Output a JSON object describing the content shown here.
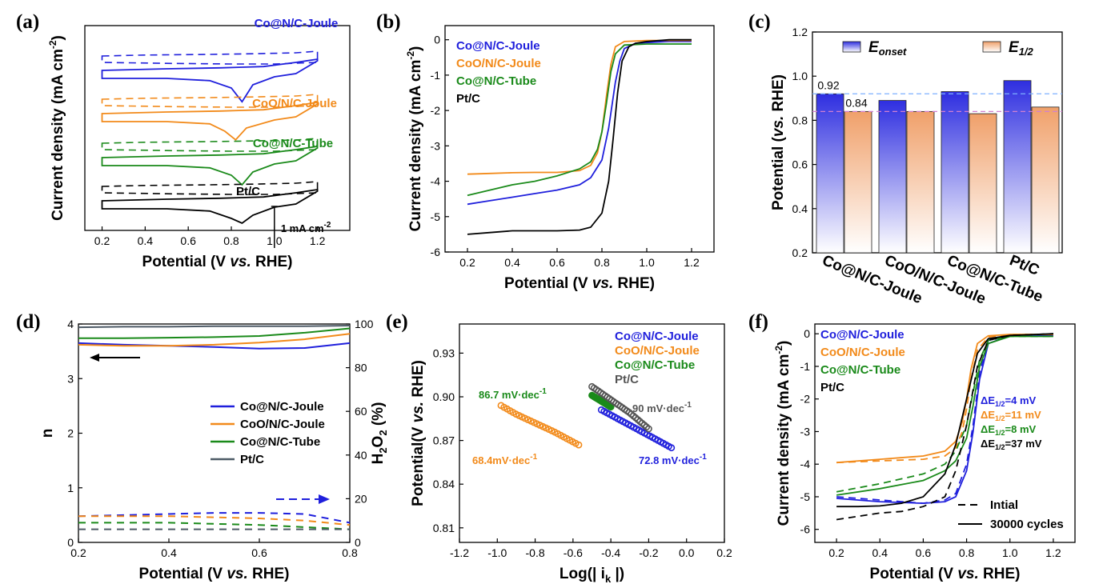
{
  "colors": {
    "blue": "#1f1fdc",
    "orange": "#f28a1a",
    "green": "#1a8a1a",
    "black": "#000000",
    "gray": "#4d5a66",
    "h2o2": "#1f4fa0"
  },
  "panels": [
    {
      "id": "a",
      "label": "(a)"
    },
    {
      "id": "b",
      "label": "(b)"
    },
    {
      "id": "c",
      "label": "(c)"
    },
    {
      "id": "d",
      "label": "(d)"
    },
    {
      "id": "e",
      "label": "(e)"
    },
    {
      "id": "f",
      "label": "(f)"
    }
  ],
  "chart_data": [
    {
      "panel": "a",
      "type": "line",
      "subtype": "cyclic-voltammetry-offset",
      "xlabel_pre": "Potential (V ",
      "xlabel_it": "vs.",
      "xlabel_post": " RHE)",
      "ylabel": "Current density (mA cm",
      "xlim": [
        0.12,
        1.35
      ],
      "xticks": [
        "0.2",
        "0.4",
        "0.6",
        "0.8",
        "1.0",
        "1.2"
      ],
      "scale_bar": "1 mA cm",
      "series": [
        {
          "name": "Co@N/C-Joule",
          "color": "blue",
          "offset": 3.6,
          "peak_potential": 0.85,
          "peak_depth": 0.78
        },
        {
          "name": "CoO/N/C-Joule",
          "color": "orange",
          "offset": 2.4,
          "peak_potential": 0.82,
          "peak_depth": 0.62
        },
        {
          "name": "Co@N/C-Tube",
          "color": "green",
          "offset": 1.25,
          "peak_potential": 0.85,
          "peak_depth": 0.65
        },
        {
          "name": "Pt/C",
          "color": "black",
          "offset": 0.15,
          "peak_potential": 0.85,
          "peak_depth": 0.5
        }
      ]
    },
    {
      "panel": "b",
      "type": "line",
      "xlabel_pre": "Potential (V ",
      "xlabel_it": "vs.",
      "xlabel_post": " RHE)",
      "ylabel": "Current density (mA cm",
      "xlim": [
        0.1,
        1.3
      ],
      "ylim": [
        -6,
        0.4
      ],
      "xticks": [
        "0.2",
        "0.4",
        "0.6",
        "0.8",
        "1.0",
        "1.2"
      ],
      "yticks": [
        "0",
        "-1",
        "-2",
        "-3",
        "-4",
        "-5",
        "-6"
      ],
      "legend": [
        "Co@N/C-Joule",
        "CoO/N/C-Joule",
        "Co@N/C-Tube",
        "Pt/C"
      ],
      "series": [
        {
          "name": "Co@N/C-Joule",
          "color": "blue",
          "x": [
            0.2,
            0.3,
            0.4,
            0.5,
            0.6,
            0.7,
            0.75,
            0.8,
            0.83,
            0.86,
            0.88,
            0.9,
            0.95,
            1.0,
            1.1,
            1.2
          ],
          "y": [
            -4.65,
            -4.55,
            -4.45,
            -4.35,
            -4.25,
            -4.1,
            -3.9,
            -3.4,
            -2.5,
            -1.2,
            -0.6,
            -0.25,
            -0.1,
            -0.08,
            -0.05,
            -0.05
          ]
        },
        {
          "name": "CoO/N/C-Joule",
          "color": "orange",
          "x": [
            0.2,
            0.3,
            0.4,
            0.5,
            0.6,
            0.7,
            0.75,
            0.78,
            0.8,
            0.82,
            0.84,
            0.86,
            0.9,
            1.0,
            1.1,
            1.2
          ],
          "y": [
            -3.8,
            -3.78,
            -3.76,
            -3.75,
            -3.75,
            -3.7,
            -3.55,
            -3.2,
            -2.6,
            -1.6,
            -0.7,
            -0.2,
            -0.05,
            -0.02,
            -0.02,
            -0.02
          ]
        },
        {
          "name": "Co@N/C-Tube",
          "color": "green",
          "x": [
            0.2,
            0.3,
            0.4,
            0.5,
            0.6,
            0.7,
            0.75,
            0.78,
            0.8,
            0.82,
            0.84,
            0.86,
            0.9,
            1.0,
            1.1,
            1.2
          ],
          "y": [
            -4.4,
            -4.25,
            -4.1,
            -4.0,
            -3.85,
            -3.65,
            -3.45,
            -3.1,
            -2.6,
            -1.8,
            -0.9,
            -0.4,
            -0.15,
            -0.12,
            -0.12,
            -0.12
          ]
        },
        {
          "name": "Pt/C",
          "color": "black",
          "x": [
            0.2,
            0.3,
            0.4,
            0.5,
            0.6,
            0.7,
            0.75,
            0.8,
            0.83,
            0.85,
            0.87,
            0.89,
            0.92,
            0.95,
            1.0,
            1.1,
            1.2
          ],
          "y": [
            -5.5,
            -5.45,
            -5.4,
            -5.4,
            -5.4,
            -5.38,
            -5.3,
            -4.9,
            -4.0,
            -2.8,
            -1.5,
            -0.6,
            -0.2,
            -0.1,
            -0.05,
            0.0,
            0.0
          ]
        }
      ]
    },
    {
      "panel": "c",
      "type": "bar",
      "ylabel_pre": "Potential (",
      "ylabel_it": "vs.",
      "ylabel_post": " RHE)",
      "ylim": [
        0.2,
        1.2
      ],
      "yticks": [
        "0.2",
        "0.4",
        "0.6",
        "0.8",
        "1.0",
        "1.2"
      ],
      "categories": [
        "Co@N/C-Joule",
        "CoO/N/C-Joule",
        "Co@N/C-Tube",
        "Pt/C"
      ],
      "legend": [
        {
          "main": "E",
          "sub": "onset"
        },
        {
          "main": "E",
          "sub": "1/2"
        }
      ],
      "series": [
        {
          "name": "E_onset",
          "color": "#2e2ee0",
          "values": [
            0.92,
            0.89,
            0.93,
            0.98
          ]
        },
        {
          "name": "E_1/2",
          "color": "#f0a06a",
          "values": [
            0.84,
            0.84,
            0.83,
            0.86
          ]
        }
      ],
      "reference_lines": [
        0.92,
        0.84
      ],
      "data_labels": [
        "0.92",
        "0.84"
      ]
    },
    {
      "panel": "d",
      "type": "line",
      "subtype": "dual-axis",
      "xlabel_pre": "Potential (V ",
      "xlabel_it": "vs.",
      "xlabel_post": " RHE)",
      "ylabel": "n",
      "ylabel_right_pre": "H",
      "ylabel_right_sub": "2",
      "ylabel_right_mid": "O",
      "ylabel_right_sub2": "2",
      "ylabel_right_post": " (%)",
      "xlim": [
        0.2,
        0.8
      ],
      "ylim": [
        0,
        4
      ],
      "ylim_right": [
        0,
        100
      ],
      "xticks": [
        "0.2",
        "0.4",
        "0.6",
        "0.8"
      ],
      "yticks": [
        "0",
        "1",
        "2",
        "3",
        "4"
      ],
      "yticks_right": [
        "0",
        "20",
        "40",
        "60",
        "80",
        "100"
      ],
      "legend": [
        "Co@N/C-Joule",
        "CoO/N/C-Joule",
        "Co@N/C-Tube",
        "Pt/C"
      ],
      "series": [
        {
          "name": "Co@N/C-Joule",
          "color": "blue",
          "x": [
            0.2,
            0.3,
            0.4,
            0.5,
            0.6,
            0.7,
            0.8
          ],
          "n": [
            3.65,
            3.62,
            3.6,
            3.58,
            3.55,
            3.56,
            3.65
          ],
          "h2o2": [
            12,
            12.5,
            13,
            13.5,
            13.5,
            13,
            9
          ]
        },
        {
          "name": "CoO/N/C-Joule",
          "color": "orange",
          "x": [
            0.2,
            0.3,
            0.4,
            0.5,
            0.6,
            0.7,
            0.8
          ],
          "n": [
            3.62,
            3.6,
            3.6,
            3.62,
            3.66,
            3.72,
            3.82
          ],
          "h2o2": [
            12,
            12,
            12,
            11.5,
            11,
            10,
            8
          ]
        },
        {
          "name": "Co@N/C-Tube",
          "color": "green",
          "x": [
            0.2,
            0.3,
            0.4,
            0.5,
            0.6,
            0.7,
            0.8
          ],
          "n": [
            3.74,
            3.74,
            3.75,
            3.76,
            3.78,
            3.84,
            3.92
          ],
          "h2o2": [
            9,
            9,
            9,
            8.5,
            8,
            7,
            6
          ]
        },
        {
          "name": "Pt/C",
          "color": "gray",
          "x": [
            0.2,
            0.3,
            0.4,
            0.5,
            0.6,
            0.7,
            0.8
          ],
          "n": [
            3.94,
            3.95,
            3.95,
            3.96,
            3.96,
            3.96,
            3.97
          ],
          "h2o2": [
            6,
            6,
            6,
            6,
            6,
            6,
            6
          ]
        }
      ]
    },
    {
      "panel": "e",
      "type": "scatter",
      "subtype": "tafel",
      "xlabel": "Log(| i",
      "xlabel_sub": "k",
      "xlabel_end": " |)",
      "ylabel_pre": "Potential(V ",
      "ylabel_it": "vs.",
      "ylabel_post": " RHE)",
      "xlim": [
        -1.2,
        0.2
      ],
      "ylim": [
        0.8,
        0.95
      ],
      "xticks": [
        "-1.2",
        "-1.0",
        "-0.8",
        "-0.6",
        "-0.4",
        "-0.2",
        "0.0",
        "0.2"
      ],
      "yticks": [
        "0.81",
        "0.84",
        "0.87",
        "0.90",
        "0.93"
      ],
      "legend": [
        "Co@N/C-Joule",
        "CoO/N/C-Joule",
        "Co@N/C-Tube",
        "Pt/C"
      ],
      "series": [
        {
          "name": "Co@N/C-Joule",
          "color": "blue",
          "x": [
            -0.45,
            -0.35,
            -0.25,
            -0.15,
            -0.08
          ],
          "y": [
            0.891,
            0.884,
            0.877,
            0.87,
            0.865
          ],
          "slope_label": "72.8 mV·dec"
        },
        {
          "name": "CoO/N/C-Joule",
          "color": "orange",
          "x": [
            -0.98,
            -0.9,
            -0.8,
            -0.7,
            -0.6,
            -0.57
          ],
          "y": [
            0.894,
            0.888,
            0.882,
            0.876,
            0.869,
            0.867
          ],
          "slope_label": "68.4mV·dec"
        },
        {
          "name": "Co@N/C-Tube",
          "color": "green",
          "x": [
            -0.5,
            -0.45,
            -0.4
          ],
          "y": [
            0.901,
            0.897,
            0.893
          ],
          "slope_label": "86.7 mV·dec"
        },
        {
          "name": "Pt/C",
          "color": "#555555",
          "x": [
            -0.5,
            -0.4,
            -0.3,
            -0.2
          ],
          "y": [
            0.907,
            0.898,
            0.889,
            0.878
          ],
          "slope_label": "90 mV·dec"
        }
      ],
      "superscript": "-1"
    },
    {
      "panel": "f",
      "type": "line",
      "subtype": "stability",
      "xlabel_pre": "Potential (V ",
      "xlabel_it": "vs.",
      "xlabel_post": " RHE)",
      "ylabel": "Current density (mA cm",
      "xlim": [
        0.1,
        1.3
      ],
      "ylim": [
        -6.4,
        0.3
      ],
      "xticks": [
        "0.2",
        "0.4",
        "0.6",
        "0.8",
        "1.0",
        "1.2"
      ],
      "yticks": [
        "0",
        "-1",
        "-2",
        "-3",
        "-4",
        "-5",
        "-6"
      ],
      "legend": [
        "Co@N/C-Joule",
        "CoO/N/C-Joule",
        "Co@N/C-Tube",
        "Pt/C"
      ],
      "deltas": [
        {
          "text": "ΔE",
          "sub": "1/2",
          "val": "=4 mV",
          "color": "blue"
        },
        {
          "text": "ΔE",
          "sub": "1/2",
          "val": "=11 mV",
          "color": "orange"
        },
        {
          "text": "ΔE",
          "sub": "1/2",
          "val": "=8 mV",
          "color": "green"
        },
        {
          "text": "ΔE",
          "sub": "1/2",
          "val": "=37 mV",
          "color": "black"
        }
      ],
      "style_legend": [
        {
          "label": "Intial",
          "dash": true
        },
        {
          "label": "30000 cycles",
          "dash": false
        }
      ],
      "series": [
        {
          "name": "Co@N/C-Joule",
          "color": "blue",
          "x": [
            0.2,
            0.4,
            0.6,
            0.7,
            0.75,
            0.8,
            0.83,
            0.86,
            0.9,
            1.0,
            1.2
          ],
          "y_initial": [
            -5.0,
            -5.1,
            -5.2,
            -5.1,
            -4.9,
            -4.0,
            -2.8,
            -1.2,
            -0.2,
            -0.05,
            -0.05
          ],
          "y_final": [
            -5.05,
            -5.15,
            -5.2,
            -5.15,
            -5.0,
            -4.2,
            -3.0,
            -1.4,
            -0.3,
            -0.06,
            -0.05
          ]
        },
        {
          "name": "CoO/N/C-Joule",
          "color": "orange",
          "x": [
            0.2,
            0.4,
            0.6,
            0.7,
            0.75,
            0.78,
            0.8,
            0.82,
            0.85,
            0.9,
            1.0,
            1.2
          ],
          "y_initial": [
            -3.95,
            -3.9,
            -3.85,
            -3.75,
            -3.5,
            -3.0,
            -2.3,
            -1.4,
            -0.5,
            -0.1,
            -0.02,
            -0.02
          ],
          "y_final": [
            -3.95,
            -3.85,
            -3.75,
            -3.6,
            -3.3,
            -2.7,
            -2.0,
            -1.1,
            -0.3,
            -0.06,
            -0.02,
            -0.02
          ]
        },
        {
          "name": "Co@N/C-Tube",
          "color": "green",
          "x": [
            0.2,
            0.4,
            0.6,
            0.7,
            0.75,
            0.8,
            0.83,
            0.86,
            0.9,
            1.0,
            1.2
          ],
          "y_initial": [
            -4.85,
            -4.6,
            -4.3,
            -4.0,
            -3.6,
            -2.8,
            -1.8,
            -0.8,
            -0.2,
            -0.08,
            -0.08
          ],
          "y_final": [
            -4.95,
            -4.75,
            -4.5,
            -4.2,
            -3.9,
            -3.2,
            -2.2,
            -1.0,
            -0.3,
            -0.08,
            -0.08
          ]
        },
        {
          "name": "Pt/C",
          "color": "black",
          "x": [
            0.2,
            0.3,
            0.4,
            0.5,
            0.6,
            0.7,
            0.75,
            0.8,
            0.85,
            0.9,
            1.0,
            1.2
          ],
          "y_initial": [
            -5.7,
            -5.6,
            -5.5,
            -5.45,
            -5.3,
            -5.0,
            -4.2,
            -2.8,
            -1.0,
            -0.2,
            -0.05,
            0.0
          ],
          "y_final": [
            -5.3,
            -5.3,
            -5.28,
            -5.2,
            -5.0,
            -4.3,
            -3.4,
            -2.0,
            -0.6,
            -0.15,
            -0.05,
            0.0
          ]
        }
      ]
    }
  ]
}
